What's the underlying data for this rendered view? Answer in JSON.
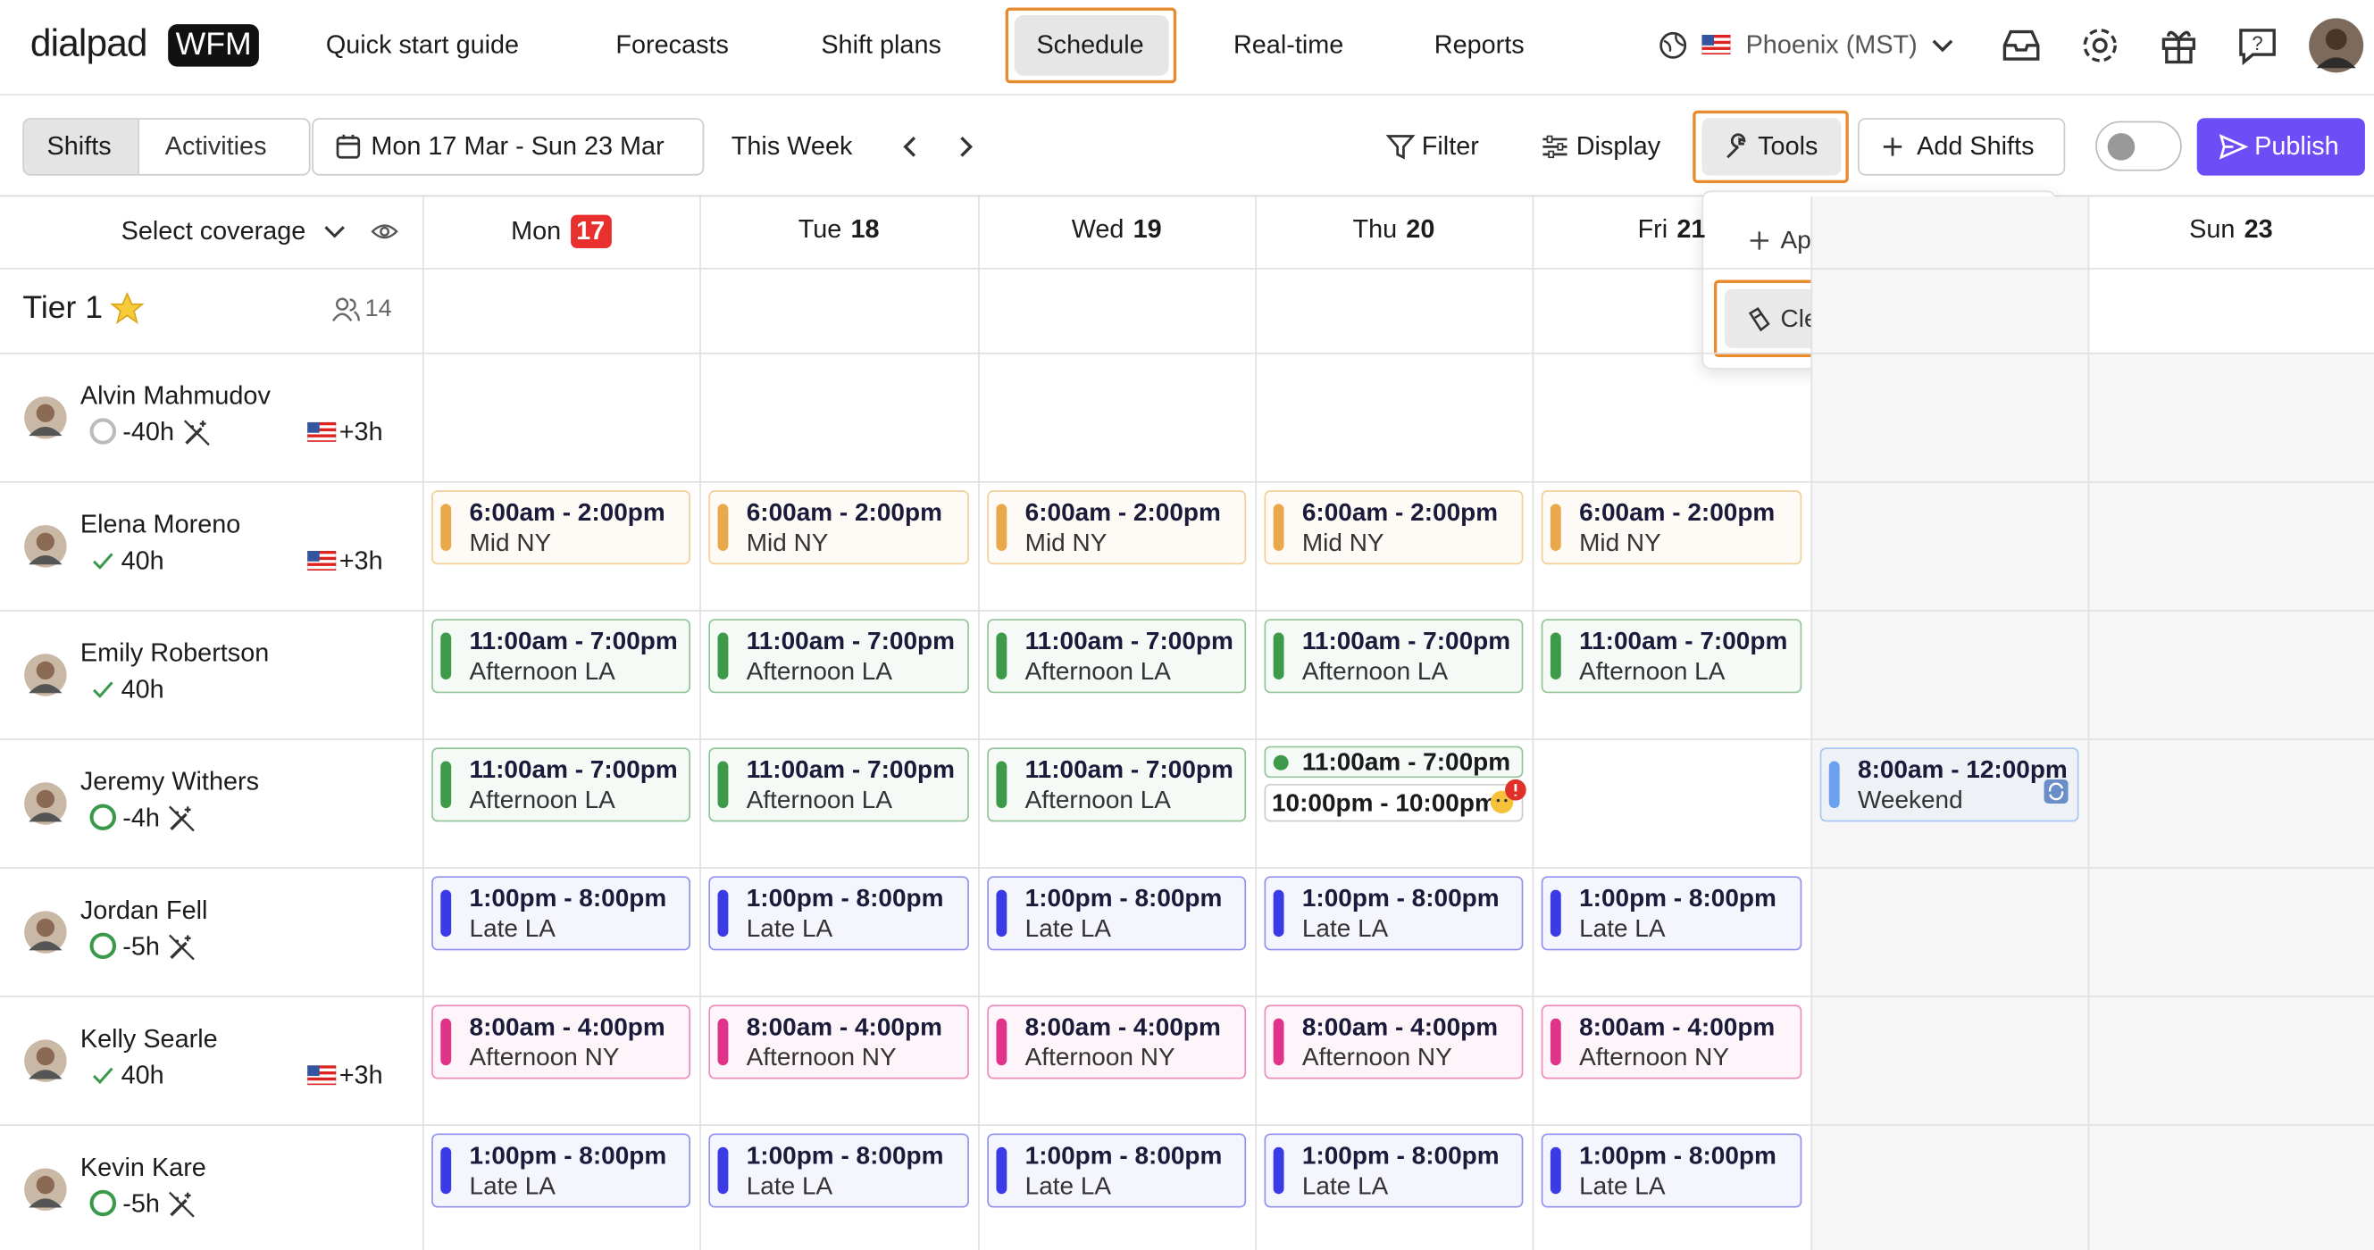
{
  "nav": {
    "logo": "dialpad",
    "logo_badge": "WFM",
    "items": [
      "Quick start guide",
      "Forecasts",
      "Shift plans",
      "Schedule",
      "Real-time",
      "Reports"
    ],
    "active": 3,
    "timezone": "Phoenix (MST)"
  },
  "toolbar": {
    "tabs": [
      "Shifts",
      "Activities"
    ],
    "date_range": "Mon 17 Mar - Sun 23 Mar",
    "this_week": "This Week",
    "filter": "Filter",
    "display": "Display",
    "tools": "Tools",
    "add_shifts": "Add Shifts",
    "publish": "Publish"
  },
  "grid": {
    "select_coverage": "Select coverage",
    "today": 0,
    "days": [
      {
        "name": "Mon",
        "date": "17"
      },
      {
        "name": "Tue",
        "date": "18"
      },
      {
        "name": "Wed",
        "date": "19"
      },
      {
        "name": "Thu",
        "date": "20"
      },
      {
        "name": "Fri",
        "date": "21"
      },
      null,
      {
        "name": "Sun",
        "date": "23"
      }
    ],
    "group": {
      "name": "Tier 1",
      "count": "14"
    }
  },
  "agents": [
    {
      "name": "Alvin Mahmudov",
      "hours": "-40h",
      "status": "ring-gray",
      "tz": "+3h",
      "shifts": [
        null,
        null,
        null,
        null,
        null,
        null,
        null
      ]
    },
    {
      "name": "Elena Moreno",
      "hours": "40h",
      "status": "check",
      "tz": "+3h",
      "shifts": [
        [
          {
            "time": "6:00am - 2:00pm",
            "label": "Mid NY",
            "color": "#e9a84a"
          }
        ],
        [
          {
            "time": "6:00am - 2:00pm",
            "label": "Mid NY",
            "color": "#e9a84a"
          }
        ],
        [
          {
            "time": "6:00am - 2:00pm",
            "label": "Mid NY",
            "color": "#e9a84a"
          }
        ],
        [
          {
            "time": "6:00am - 2:00pm",
            "label": "Mid NY",
            "color": "#e9a84a"
          }
        ],
        [
          {
            "time": "6:00am - 2:00pm",
            "label": "Mid NY",
            "color": "#e9a84a"
          }
        ],
        null,
        null
      ]
    },
    {
      "name": "Emily Robertson",
      "hours": "40h",
      "status": "check",
      "tz": null,
      "shifts": [
        [
          {
            "time": "11:00am - 7:00pm",
            "label": "Afternoon LA",
            "color": "#3c9a48"
          }
        ],
        [
          {
            "time": "11:00am - 7:00pm",
            "label": "Afternoon LA",
            "color": "#3c9a48"
          }
        ],
        [
          {
            "time": "11:00am - 7:00pm",
            "label": "Afternoon LA",
            "color": "#3c9a48"
          }
        ],
        [
          {
            "time": "11:00am - 7:00pm",
            "label": "Afternoon LA",
            "color": "#3c9a48"
          }
        ],
        [
          {
            "time": "11:00am - 7:00pm",
            "label": "Afternoon LA",
            "color": "#3c9a48"
          }
        ],
        null,
        null
      ]
    },
    {
      "name": "Jeremy Withers",
      "hours": "-4h",
      "status": "ring-green",
      "tz": null,
      "shifts": [
        [
          {
            "time": "11:00am - 7:00pm",
            "label": "Afternoon LA",
            "color": "#3c9a48"
          }
        ],
        [
          {
            "time": "11:00am - 7:00pm",
            "label": "Afternoon LA",
            "color": "#3c9a48"
          }
        ],
        [
          {
            "time": "11:00am - 7:00pm",
            "label": "Afternoon LA",
            "color": "#3c9a48"
          }
        ],
        [
          {
            "time": "11:00am - 7:00pm",
            "color": "#3c9a48"
          },
          {
            "time": "10:00pm - 10:00pm",
            "color": "#999999"
          }
        ],
        null,
        [
          {
            "time": "8:00am - 12:00pm",
            "label": "Weekend",
            "color": "#6aa2f0"
          }
        ],
        null
      ]
    },
    {
      "name": "Jordan Fell",
      "hours": "-5h",
      "status": "ring-green",
      "tz": null,
      "shifts": [
        [
          {
            "time": "1:00pm - 8:00pm",
            "label": "Late LA",
            "color": "#3b3be6"
          }
        ],
        [
          {
            "time": "1:00pm - 8:00pm",
            "label": "Late LA",
            "color": "#3b3be6"
          }
        ],
        [
          {
            "time": "1:00pm - 8:00pm",
            "label": "Late LA",
            "color": "#3b3be6"
          }
        ],
        [
          {
            "time": "1:00pm - 8:00pm",
            "label": "Late LA",
            "color": "#3b3be6"
          }
        ],
        [
          {
            "time": "1:00pm - 8:00pm",
            "label": "Late LA",
            "color": "#3b3be6"
          }
        ],
        null,
        null
      ]
    },
    {
      "name": "Kelly Searle",
      "hours": "40h",
      "status": "check",
      "tz": "+3h",
      "shifts": [
        [
          {
            "time": "8:00am - 4:00pm",
            "label": "Afternoon NY",
            "color": "#e0338a"
          }
        ],
        [
          {
            "time": "8:00am - 4:00pm",
            "label": "Afternoon NY",
            "color": "#e0338a"
          }
        ],
        [
          {
            "time": "8:00am - 4:00pm",
            "label": "Afternoon NY",
            "color": "#e0338a"
          }
        ],
        [
          {
            "time": "8:00am - 4:00pm",
            "label": "Afternoon NY",
            "color": "#e0338a"
          }
        ],
        [
          {
            "time": "8:00am - 4:00pm",
            "label": "Afternoon NY",
            "color": "#e0338a"
          }
        ],
        null,
        null
      ]
    },
    {
      "name": "Kevin Kare",
      "hours": "-5h",
      "status": "ring-green",
      "tz": null,
      "shifts": [
        [
          {
            "time": "1:00pm - 8:00pm",
            "label": "Late LA",
            "color": "#3b3be6"
          }
        ],
        [
          {
            "time": "1:00pm - 8:00pm",
            "label": "Late LA",
            "color": "#3b3be6"
          }
        ],
        [
          {
            "time": "1:00pm - 8:00pm",
            "label": "Late LA",
            "color": "#3b3be6"
          }
        ],
        [
          {
            "time": "1:00pm - 8:00pm",
            "label": "Late LA",
            "color": "#3b3be6"
          }
        ],
        [
          {
            "time": "1:00pm - 8:00pm",
            "label": "Late LA",
            "color": "#3b3be6"
          }
        ],
        null,
        null
      ]
    }
  ],
  "tools_menu": {
    "items": [
      "Apply Shift Plan",
      "Clear Shifts"
    ]
  }
}
